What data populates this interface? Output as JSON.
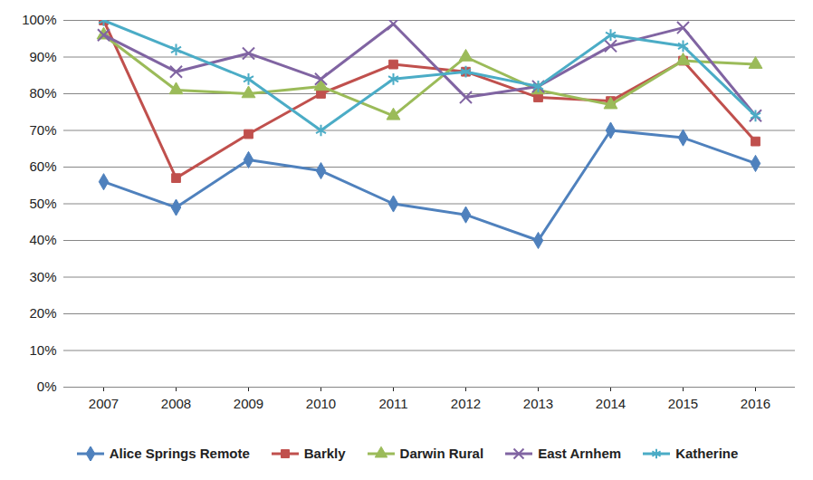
{
  "chart_data": {
    "type": "line",
    "x": [
      "2007",
      "2008",
      "2009",
      "2010",
      "2011",
      "2012",
      "2013",
      "2014",
      "2015",
      "2016"
    ],
    "series": [
      {
        "name": "Alice Springs Remote",
        "color": "#4f81bd",
        "marker": "diamond",
        "values": [
          56,
          49,
          62,
          59,
          50,
          47,
          40,
          70,
          68,
          61
        ]
      },
      {
        "name": "Barkly",
        "color": "#c0504d",
        "marker": "square",
        "values": [
          100,
          57,
          69,
          80,
          88,
          86,
          79,
          78,
          89,
          67
        ]
      },
      {
        "name": "Darwin Rural",
        "color": "#9bbb59",
        "marker": "triangle",
        "values": [
          96,
          81,
          80,
          82,
          74,
          90,
          81,
          77,
          89,
          88
        ]
      },
      {
        "name": "East Arnhem",
        "color": "#8064a2",
        "marker": "times",
        "values": [
          96,
          86,
          91,
          84,
          99,
          79,
          82,
          93,
          98,
          74
        ]
      },
      {
        "name": "Katherine",
        "color": "#4bacc6",
        "marker": "asterisk",
        "values": [
          100,
          92,
          84,
          70,
          84,
          86,
          82,
          96,
          93,
          74
        ]
      }
    ],
    "ylim": [
      0,
      100
    ],
    "yticks": [
      {
        "value": 0,
        "label": "0%"
      },
      {
        "value": 10,
        "label": "10%"
      },
      {
        "value": 20,
        "label": "20%"
      },
      {
        "value": 30,
        "label": "30%"
      },
      {
        "value": 40,
        "label": "40%"
      },
      {
        "value": 50,
        "label": "50%"
      },
      {
        "value": 60,
        "label": "60%"
      },
      {
        "value": 70,
        "label": "70%"
      },
      {
        "value": 80,
        "label": "80%"
      },
      {
        "value": 90,
        "label": "90%"
      },
      {
        "value": 100,
        "label": "100%"
      }
    ],
    "grid": true,
    "legend": "bottom"
  }
}
